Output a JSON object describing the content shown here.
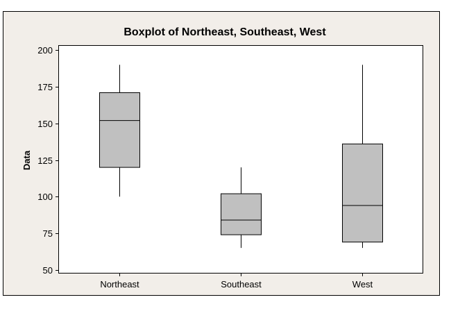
{
  "chart_data": {
    "type": "boxplot",
    "title": "Boxplot of Northeast, Southeast, West",
    "xlabel": "",
    "ylabel": "Data",
    "ylim": [
      48,
      203
    ],
    "yticks": [
      50,
      75,
      100,
      125,
      150,
      175,
      200
    ],
    "grid": false,
    "legend": "none",
    "categories": [
      "Northeast",
      "Southeast",
      "West"
    ],
    "boxes": [
      {
        "category": "Northeast",
        "whisker_low": 100,
        "q1": 120,
        "median": 152,
        "q3": 171,
        "whisker_high": 190
      },
      {
        "category": "Southeast",
        "whisker_low": 65,
        "q1": 74,
        "median": 84,
        "q3": 102,
        "whisker_high": 120
      },
      {
        "category": "West",
        "whisker_low": 65,
        "q1": 69,
        "median": 94,
        "q3": 136,
        "whisker_high": 190
      }
    ],
    "colors": {
      "frame_background": "#f2eee9",
      "plot_background": "#ffffff",
      "box_fill": "#c0c0c0",
      "stroke": "#000000"
    }
  }
}
